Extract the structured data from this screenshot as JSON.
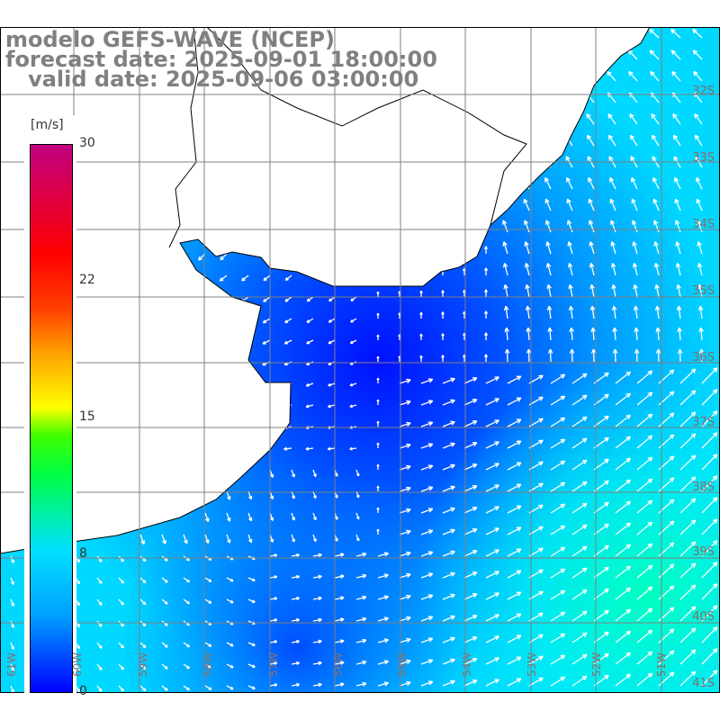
{
  "title": {
    "model": "modelo GEFS-WAVE (NCEP)",
    "forecast": "forecast date: 2025-09-01 18:00:00",
    "valid": "   valid date: 2025-09-06 03:00:00"
  },
  "colorbar": {
    "unit": "[m/s]",
    "ticks": [
      "30",
      "22",
      "15",
      "8",
      "0"
    ],
    "tick_values": [
      30,
      22,
      15,
      8,
      0
    ]
  },
  "lat_labels": [
    "32S",
    "33S",
    "34S",
    "35S",
    "36S",
    "37S",
    "38S",
    "39S",
    "40S",
    "41S"
  ],
  "lon_labels": [
    "61W",
    "60W",
    "59W",
    "58W",
    "57W",
    "56W",
    "55W",
    "54W",
    "53W",
    "52W",
    "51W"
  ],
  "colors": {
    "land": "#ffffff",
    "grid": "#808080",
    "coast": "#000000",
    "arrow": "#ffffff"
  }
}
